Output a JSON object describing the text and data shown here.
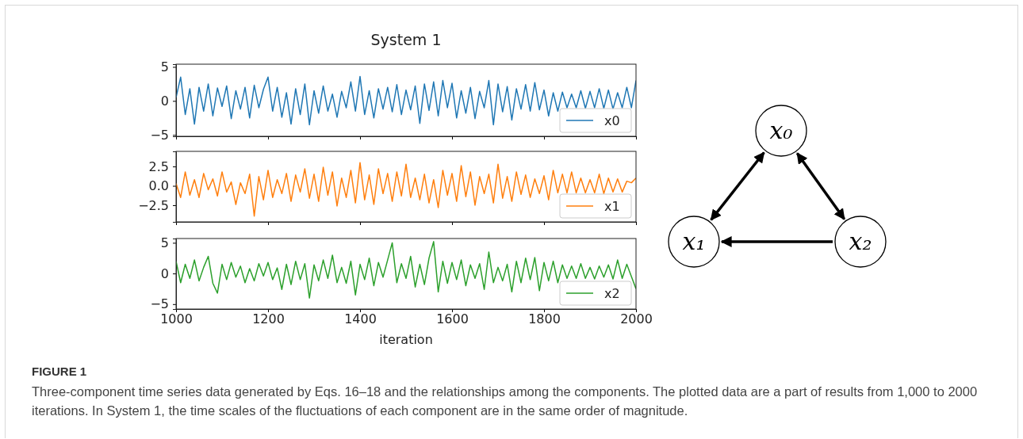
{
  "chart_data": [
    {
      "type": "line",
      "title": "System 1",
      "xlim": [
        1000,
        2000
      ],
      "xticks": [
        1000,
        1200,
        1400,
        1600,
        1800,
        2000
      ],
      "ylim": [
        -5.2,
        5.4
      ],
      "yticks": [
        {
          "value": 5,
          "label": "5"
        },
        {
          "value": 0,
          "label": "0"
        },
        {
          "value": -5,
          "label": "−5"
        }
      ],
      "tick_labels": "y",
      "legend": "bottom right",
      "x": [
        1000,
        1010,
        1020,
        1030,
        1040,
        1050,
        1060,
        1070,
        1080,
        1090,
        1100,
        1110,
        1120,
        1130,
        1140,
        1150,
        1160,
        1170,
        1180,
        1190,
        1200,
        1210,
        1220,
        1230,
        1240,
        1250,
        1260,
        1270,
        1280,
        1290,
        1300,
        1310,
        1320,
        1330,
        1340,
        1350,
        1360,
        1370,
        1380,
        1390,
        1400,
        1410,
        1420,
        1430,
        1440,
        1450,
        1460,
        1470,
        1480,
        1490,
        1500,
        1510,
        1520,
        1530,
        1540,
        1550,
        1560,
        1570,
        1580,
        1590,
        1600,
        1610,
        1620,
        1630,
        1640,
        1650,
        1660,
        1670,
        1680,
        1690,
        1700,
        1710,
        1720,
        1730,
        1740,
        1750,
        1760,
        1770,
        1780,
        1790,
        1800,
        1810,
        1820,
        1830,
        1840,
        1850,
        1860,
        1870,
        1880,
        1890,
        1900,
        1910,
        1920,
        1930,
        1940,
        1950,
        1960,
        1970,
        1980,
        1990,
        2000
      ],
      "series": [
        {
          "name": "x0",
          "color": "#1f77b4",
          "values": [
            0.5,
            3.5,
            -2.0,
            1.8,
            -3.4,
            2.0,
            -1.5,
            2.5,
            -2.2,
            1.9,
            -0.8,
            2.2,
            -2.6,
            1.5,
            -1.2,
            2.0,
            -2.5,
            2.3,
            -1.0,
            1.7,
            3.5,
            -1.5,
            2.0,
            -2.4,
            1.2,
            -3.4,
            1.8,
            -2.0,
            2.5,
            -3.5,
            1.5,
            -1.8,
            2.2,
            -1.5,
            1.0,
            -2.4,
            1.4,
            -1.0,
            2.8,
            -1.5,
            3.6,
            -2.0,
            1.5,
            -2.5,
            1.8,
            -1.2,
            2.0,
            -1.6,
            2.4,
            -2.0,
            1.6,
            -1.3,
            2.2,
            -3.3,
            2.5,
            -1.4,
            2.8,
            -2.2,
            3.0,
            -1.0,
            2.6,
            -2.5,
            1.5,
            -1.8,
            2.0,
            -2.6,
            1.4,
            -1.0,
            3.0,
            -3.5,
            2.5,
            -1.6,
            2.1,
            -2.8,
            1.8,
            -1.2,
            2.4,
            -1.5,
            2.7,
            -1.3,
            1.6,
            -2.2,
            1.2,
            -1.5,
            1.3,
            -1.0,
            1.0,
            -1.0,
            1.5,
            -1.1,
            1.4,
            -1.0,
            1.8,
            -1.1,
            1.6,
            -1.2,
            1.2,
            -1.0,
            2.0,
            -1.0,
            3.0
          ]
        }
      ]
    },
    {
      "type": "line",
      "xlim": [
        1000,
        2000
      ],
      "xticks": [
        1000,
        1200,
        1400,
        1600,
        1800,
        2000
      ],
      "ylim": [
        -4.65,
        4.45
      ],
      "yticks": [
        {
          "value": 2.5,
          "label": "2.5"
        },
        {
          "value": 0,
          "label": "0.0"
        },
        {
          "value": -2.5,
          "label": "−2.5"
        }
      ],
      "tick_labels": "y",
      "legend": "bottom right",
      "x": [
        1000,
        1010,
        1020,
        1030,
        1040,
        1050,
        1060,
        1070,
        1080,
        1090,
        1100,
        1110,
        1120,
        1130,
        1140,
        1150,
        1160,
        1170,
        1180,
        1190,
        1200,
        1210,
        1220,
        1230,
        1240,
        1250,
        1260,
        1270,
        1280,
        1290,
        1300,
        1310,
        1320,
        1330,
        1340,
        1350,
        1360,
        1370,
        1380,
        1390,
        1400,
        1410,
        1420,
        1430,
        1440,
        1450,
        1460,
        1470,
        1480,
        1490,
        1500,
        1510,
        1520,
        1530,
        1540,
        1550,
        1560,
        1570,
        1580,
        1590,
        1600,
        1610,
        1620,
        1630,
        1640,
        1650,
        1660,
        1670,
        1680,
        1690,
        1700,
        1710,
        1720,
        1730,
        1740,
        1750,
        1760,
        1770,
        1780,
        1790,
        1800,
        1810,
        1820,
        1830,
        1840,
        1850,
        1860,
        1870,
        1880,
        1890,
        1900,
        1910,
        1920,
        1930,
        1940,
        1950,
        1960,
        1970,
        1980,
        1990,
        2000
      ],
      "series": [
        {
          "name": "x1",
          "color": "#ff7f0e",
          "values": [
            0.3,
            -1.5,
            1.8,
            -1.2,
            0.8,
            -1.5,
            1.6,
            -0.5,
            0.9,
            -1.3,
            1.8,
            -0.8,
            0.5,
            -2.4,
            0.4,
            -1.0,
            1.5,
            -3.9,
            1.2,
            -1.8,
            2.0,
            -1.5,
            0.8,
            -1.0,
            1.6,
            -2.0,
            1.4,
            -0.8,
            2.2,
            -1.6,
            1.5,
            -2.0,
            2.4,
            -1.2,
            1.8,
            -2.6,
            1.0,
            -1.5,
            2.0,
            -2.2,
            3.0,
            -1.8,
            1.4,
            -2.4,
            2.2,
            -1.0,
            1.6,
            -2.0,
            1.8,
            -1.3,
            2.8,
            -1.5,
            1.0,
            -1.8,
            1.5,
            -2.2,
            0.8,
            -2.8,
            2.0,
            -1.2,
            1.6,
            -2.0,
            2.6,
            -1.4,
            1.8,
            -2.5,
            1.2,
            -1.0,
            1.5,
            -2.2,
            2.8,
            -1.6,
            1.2,
            -2.0,
            1.8,
            -1.1,
            1.4,
            -1.5,
            0.9,
            -1.0,
            1.3,
            -1.8,
            2.0,
            -0.9,
            1.5,
            -0.9,
            1.8,
            -0.9,
            1.0,
            -0.9,
            0.8,
            -0.9,
            1.5,
            -1.0,
            1.0,
            -0.8,
            0.9,
            -0.8,
            0.6,
            0.4,
            1.0
          ]
        }
      ]
    },
    {
      "type": "line",
      "xlabel": "iteration",
      "xlim": [
        1000,
        2000
      ],
      "xticks": [
        1000,
        1200,
        1400,
        1600,
        1800,
        2000
      ],
      "ylim": [
        -5.8,
        5.7
      ],
      "yticks": [
        {
          "value": 5,
          "label": "5"
        },
        {
          "value": 0,
          "label": "0"
        },
        {
          "value": -5,
          "label": "−5"
        }
      ],
      "legend": "bottom right",
      "annotations": [
        "FIGURE 1",
        "Three-component time series data generated by Eqs. 16–18 and the relationships among the components. The plotted data are a part of results from 1,000 to 2000 iterations. In System 1, the time scales of the fluctuations of each component are in the same order of magnitude."
      ],
      "x": [
        1000,
        1010,
        1020,
        1030,
        1040,
        1050,
        1060,
        1070,
        1080,
        1090,
        1100,
        1110,
        1120,
        1130,
        1140,
        1150,
        1160,
        1170,
        1180,
        1190,
        1200,
        1210,
        1220,
        1230,
        1240,
        1250,
        1260,
        1270,
        1280,
        1290,
        1300,
        1310,
        1320,
        1330,
        1340,
        1350,
        1360,
        1370,
        1380,
        1390,
        1400,
        1410,
        1420,
        1430,
        1440,
        1450,
        1460,
        1470,
        1480,
        1490,
        1500,
        1510,
        1520,
        1530,
        1540,
        1550,
        1560,
        1570,
        1580,
        1590,
        1600,
        1610,
        1620,
        1630,
        1640,
        1650,
        1660,
        1670,
        1680,
        1690,
        1700,
        1710,
        1720,
        1730,
        1740,
        1750,
        1760,
        1770,
        1780,
        1790,
        1800,
        1810,
        1820,
        1830,
        1840,
        1850,
        1860,
        1870,
        1880,
        1890,
        1900,
        1910,
        1920,
        1930,
        1940,
        1950,
        1960,
        1970,
        1980,
        1990,
        2000
      ],
      "series": [
        {
          "name": "x2",
          "color": "#2ca02c",
          "values": [
            2.0,
            -1.5,
            1.5,
            -0.8,
            2.2,
            -1.2,
            1.0,
            2.8,
            -1.6,
            -3.2,
            1.5,
            -1.0,
            1.8,
            -0.6,
            1.2,
            -1.5,
            0.8,
            -1.2,
            1.6,
            -0.4,
            1.8,
            -1.0,
            0.9,
            -2.6,
            1.5,
            -1.8,
            2.0,
            -1.0,
            1.6,
            -4.0,
            1.4,
            -1.2,
            2.2,
            -0.8,
            3.0,
            -1.5,
            1.0,
            -1.6,
            2.0,
            -3.5,
            1.5,
            -1.0,
            2.5,
            -2.0,
            1.8,
            -0.6,
            2.2,
            5.0,
            -1.5,
            1.6,
            -0.8,
            2.8,
            -2.2,
            1.5,
            -1.8,
            2.5,
            5.2,
            -3.0,
            2.0,
            -1.6,
            1.8,
            -1.0,
            2.2,
            -2.0,
            1.4,
            -0.8,
            1.6,
            -2.6,
            3.5,
            -1.5,
            1.0,
            -1.2,
            1.5,
            -3.0,
            2.0,
            -1.5,
            2.5,
            -1.0,
            2.6,
            -2.8,
            1.8,
            -1.2,
            2.0,
            -1.5,
            1.4,
            -0.8,
            1.2,
            -0.8,
            1.6,
            -0.8,
            1.0,
            -0.9,
            1.2,
            -0.6,
            1.4,
            -0.9,
            2.2,
            -0.8,
            1.5,
            -0.5,
            -2.5
          ]
        }
      ]
    },
    {
      "type": "other",
      "annotations": [
        "x₀",
        "x₁",
        "x₂"
      ]
    }
  ]
}
